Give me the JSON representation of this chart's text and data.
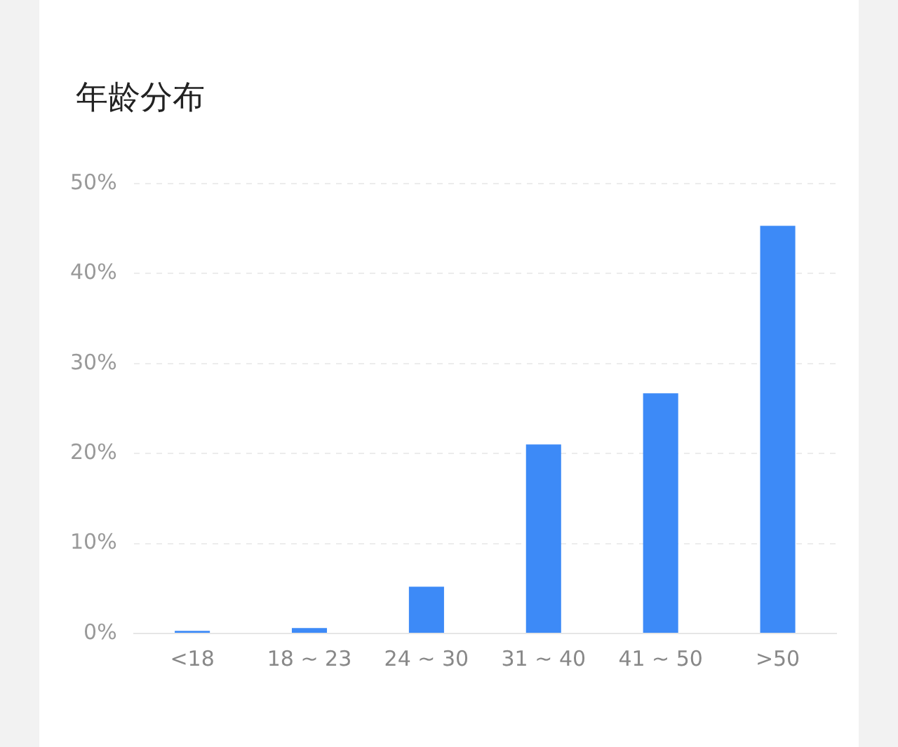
{
  "chart_data": {
    "type": "bar",
    "title": "年龄分布",
    "categories": [
      "<18",
      "18 ~ 23",
      "24 ~ 30",
      "31 ~ 40",
      "41 ~ 50",
      ">50"
    ],
    "values": [
      0.3,
      0.6,
      5.2,
      21.0,
      26.7,
      45.3
    ],
    "color": "#3d8af7",
    "ylim": [
      0,
      50
    ],
    "yticks": [
      {
        "value": 0,
        "label": "0%"
      },
      {
        "value": 10,
        "label": "10%"
      },
      {
        "value": 20,
        "label": "20%"
      },
      {
        "value": 30,
        "label": "30%"
      },
      {
        "value": 40,
        "label": "40%"
      },
      {
        "value": 50,
        "label": "50%"
      }
    ],
    "grid": "y",
    "legend": false
  }
}
